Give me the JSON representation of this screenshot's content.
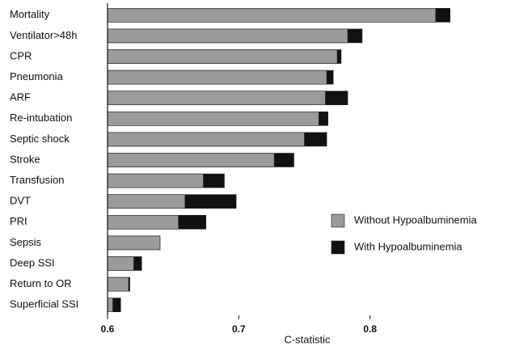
{
  "chart_data": {
    "type": "bar",
    "orientation": "horizontal",
    "layout": "overlay",
    "x_label": "C-statistic",
    "categories": [
      "Mortality",
      "Ventilator>48h",
      "CPR",
      "Pneumonia",
      "ARF",
      "Re-intubation",
      "Septic shock",
      "Stroke",
      "Transfusion",
      "DVT",
      "PRI",
      "Sepsis",
      "Deep SSI",
      "Return to OR",
      "Superficial SSI"
    ],
    "series": [
      {
        "name": "With Hypoalbuminemia",
        "color": "#111111",
        "values": [
          0.861,
          0.794,
          0.778,
          0.772,
          0.783,
          0.768,
          0.767,
          0.742,
          0.689,
          0.698,
          0.675,
          0.64,
          0.626,
          0.617,
          0.61
        ]
      },
      {
        "name": "Without Hypoalbuminemia",
        "color": "#9a9a9a",
        "values": [
          0.85,
          0.783,
          0.775,
          0.767,
          0.766,
          0.761,
          0.75,
          0.727,
          0.673,
          0.659,
          0.654,
          0.64,
          0.62,
          0.616,
          0.604
        ]
      }
    ],
    "legend_order": [
      1,
      0
    ],
    "xlim": [
      0.6,
      0.9
    ],
    "xticks": [
      0.6,
      0.7,
      0.8
    ]
  }
}
